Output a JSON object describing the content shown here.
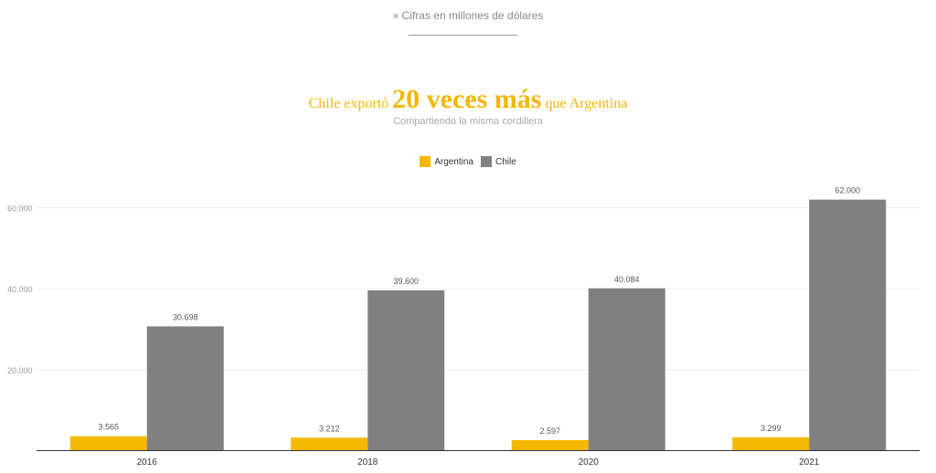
{
  "header": {
    "note": "» Cifras en millones de dólares"
  },
  "chart_data": {
    "type": "bar",
    "title_parts": [
      "Chile exportó ",
      "20 veces más",
      " que Argentina"
    ],
    "subtitle": "Compartiendo la misma cordillera",
    "categories": [
      "2016",
      "2018",
      "2020",
      "2021"
    ],
    "series": [
      {
        "name": "Argentina",
        "color": "#f5b800",
        "values": [
          3565,
          3212,
          2597,
          3299
        ],
        "labels": [
          "3.565",
          "3.212",
          "2.597",
          "3.299"
        ]
      },
      {
        "name": "Chile",
        "color": "#808080",
        "values": [
          30698,
          39600,
          40084,
          62000
        ],
        "labels": [
          "30.698",
          "39.600",
          "40.084",
          "62.000"
        ]
      }
    ],
    "yticks": [
      20000,
      40000,
      60000
    ],
    "ytick_labels": [
      "20.000",
      "40.000",
      "60.000"
    ],
    "ylim": [
      0,
      60000
    ],
    "grid": true,
    "legend_position": "top-center"
  }
}
